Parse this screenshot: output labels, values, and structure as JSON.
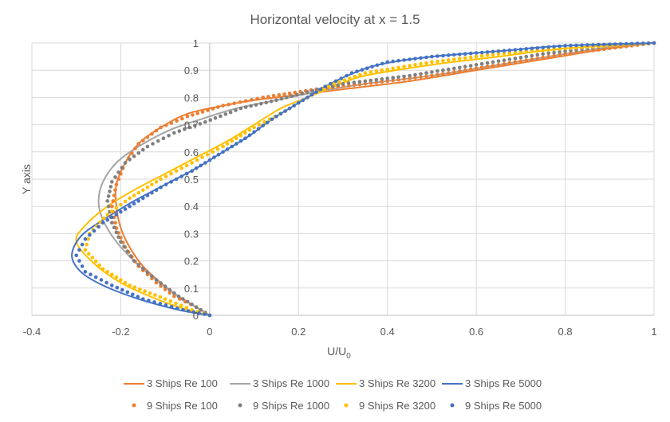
{
  "chart_data": {
    "type": "scatter",
    "title": "Horizontal velocity at x = 1.5",
    "xlabel": "U/U",
    "xlabel_subscript": "0",
    "ylabel": "Y axis",
    "xlim": [
      -0.4,
      1
    ],
    "ylim": [
      0,
      1
    ],
    "xticks": [
      "-0.4",
      "-0.2",
      "0",
      "0.2",
      "0.4",
      "0.6",
      "0.8",
      "1"
    ],
    "yticks": [
      "0",
      "0.1",
      "0.2",
      "0.3",
      "0.4",
      "0.5",
      "0.6",
      "0.7",
      "0.8",
      "0.9",
      "1"
    ],
    "grid": true,
    "legend_position": "bottom",
    "series": [
      {
        "name": "3 Ships Re 100",
        "style": "line",
        "color": "#ED7D31",
        "points": [
          [
            0,
            0
          ],
          [
            -0.03,
            0.03
          ],
          [
            -0.07,
            0.07
          ],
          [
            -0.11,
            0.12
          ],
          [
            -0.15,
            0.18
          ],
          [
            -0.18,
            0.25
          ],
          [
            -0.2,
            0.32
          ],
          [
            -0.21,
            0.4
          ],
          [
            -0.21,
            0.48
          ],
          [
            -0.19,
            0.56
          ],
          [
            -0.16,
            0.63
          ],
          [
            -0.11,
            0.69
          ],
          [
            -0.05,
            0.74
          ],
          [
            0.03,
            0.77
          ],
          [
            0.1,
            0.79
          ],
          [
            0.2,
            0.81
          ],
          [
            0.3,
            0.83
          ],
          [
            0.45,
            0.86
          ],
          [
            0.6,
            0.9
          ],
          [
            0.75,
            0.94
          ],
          [
            0.9,
            0.98
          ],
          [
            1,
            1
          ]
        ]
      },
      {
        "name": "3 Ships Re 1000",
        "style": "line",
        "color": "#A5A5A5",
        "points": [
          [
            0,
            0
          ],
          [
            -0.03,
            0.03
          ],
          [
            -0.07,
            0.07
          ],
          [
            -0.12,
            0.13
          ],
          [
            -0.17,
            0.2
          ],
          [
            -0.21,
            0.27
          ],
          [
            -0.24,
            0.35
          ],
          [
            -0.25,
            0.42
          ],
          [
            -0.24,
            0.49
          ],
          [
            -0.21,
            0.56
          ],
          [
            -0.16,
            0.62
          ],
          [
            -0.09,
            0.68
          ],
          [
            -0.02,
            0.72
          ],
          [
            0.06,
            0.76
          ],
          [
            0.15,
            0.79
          ],
          [
            0.24,
            0.82
          ],
          [
            0.35,
            0.85
          ],
          [
            0.5,
            0.88
          ],
          [
            0.65,
            0.92
          ],
          [
            0.8,
            0.96
          ],
          [
            0.92,
            0.99
          ],
          [
            1,
            1
          ]
        ]
      },
      {
        "name": "3 Ships Re 3200",
        "style": "line",
        "color": "#FFC000",
        "points": [
          [
            0,
            0
          ],
          [
            -0.05,
            0.02
          ],
          [
            -0.12,
            0.06
          ],
          [
            -0.2,
            0.12
          ],
          [
            -0.26,
            0.19
          ],
          [
            -0.3,
            0.27
          ],
          [
            -0.28,
            0.33
          ],
          [
            -0.23,
            0.4
          ],
          [
            -0.17,
            0.46
          ],
          [
            -0.1,
            0.52
          ],
          [
            -0.03,
            0.58
          ],
          [
            0.04,
            0.64
          ],
          [
            0.1,
            0.7
          ],
          [
            0.16,
            0.76
          ],
          [
            0.22,
            0.8
          ],
          [
            0.28,
            0.84
          ],
          [
            0.35,
            0.88
          ],
          [
            0.5,
            0.92
          ],
          [
            0.65,
            0.95
          ],
          [
            0.8,
            0.98
          ],
          [
            1,
            1
          ]
        ]
      },
      {
        "name": "3 Ships Re 5000",
        "style": "line",
        "color": "#4472C4",
        "points": [
          [
            0,
            0
          ],
          [
            -0.07,
            0.02
          ],
          [
            -0.16,
            0.06
          ],
          [
            -0.24,
            0.11
          ],
          [
            -0.29,
            0.16
          ],
          [
            -0.31,
            0.22
          ],
          [
            -0.29,
            0.29
          ],
          [
            -0.24,
            0.35
          ],
          [
            -0.17,
            0.42
          ],
          [
            -0.1,
            0.48
          ],
          [
            -0.03,
            0.54
          ],
          [
            0.03,
            0.6
          ],
          [
            0.09,
            0.66
          ],
          [
            0.14,
            0.72
          ],
          [
            0.2,
            0.78
          ],
          [
            0.26,
            0.84
          ],
          [
            0.31,
            0.88
          ],
          [
            0.38,
            0.92
          ],
          [
            0.5,
            0.95
          ],
          [
            0.65,
            0.97
          ],
          [
            0.8,
            0.99
          ],
          [
            1,
            1
          ]
        ]
      },
      {
        "name": "9 Ships Re 100",
        "style": "dots",
        "color": "#ED7D31",
        "points": [
          [
            0,
            0
          ],
          [
            -0.03,
            0.03
          ],
          [
            -0.08,
            0.07
          ],
          [
            -0.12,
            0.12
          ],
          [
            -0.16,
            0.18
          ],
          [
            -0.19,
            0.25
          ],
          [
            -0.21,
            0.32
          ],
          [
            -0.22,
            0.4
          ],
          [
            -0.21,
            0.48
          ],
          [
            -0.19,
            0.56
          ],
          [
            -0.16,
            0.63
          ],
          [
            -0.11,
            0.69
          ],
          [
            -0.05,
            0.73
          ],
          [
            0.03,
            0.77
          ],
          [
            0.12,
            0.8
          ],
          [
            0.24,
            0.83
          ],
          [
            0.35,
            0.85
          ],
          [
            0.5,
            0.88
          ],
          [
            0.65,
            0.92
          ],
          [
            0.8,
            0.96
          ],
          [
            0.9,
            0.98
          ],
          [
            1,
            1
          ]
        ]
      },
      {
        "name": "9 Ships Re 1000",
        "style": "dots",
        "color": "#7F7F7F",
        "points": [
          [
            0,
            0
          ],
          [
            -0.03,
            0.03
          ],
          [
            -0.07,
            0.07
          ],
          [
            -0.12,
            0.13
          ],
          [
            -0.17,
            0.2
          ],
          [
            -0.2,
            0.27
          ],
          [
            -0.22,
            0.34
          ],
          [
            -0.23,
            0.42
          ],
          [
            -0.22,
            0.49
          ],
          [
            -0.19,
            0.56
          ],
          [
            -0.14,
            0.62
          ],
          [
            -0.08,
            0.67
          ],
          [
            -0.01,
            0.71
          ],
          [
            0.07,
            0.76
          ],
          [
            0.15,
            0.79
          ],
          [
            0.22,
            0.82
          ],
          [
            0.3,
            0.85
          ],
          [
            0.45,
            0.88
          ],
          [
            0.6,
            0.92
          ],
          [
            0.75,
            0.96
          ],
          [
            0.9,
            0.99
          ],
          [
            1,
            1
          ]
        ]
      },
      {
        "name": "9 Ships Re 3200",
        "style": "dots",
        "color": "#FFC000",
        "points": [
          [
            0,
            0
          ],
          [
            -0.04,
            0.02
          ],
          [
            -0.1,
            0.06
          ],
          [
            -0.18,
            0.11
          ],
          [
            -0.24,
            0.17
          ],
          [
            -0.28,
            0.24
          ],
          [
            -0.27,
            0.3
          ],
          [
            -0.23,
            0.37
          ],
          [
            -0.18,
            0.43
          ],
          [
            -0.11,
            0.5
          ],
          [
            -0.04,
            0.56
          ],
          [
            0.03,
            0.62
          ],
          [
            0.1,
            0.69
          ],
          [
            0.17,
            0.75
          ],
          [
            0.23,
            0.81
          ],
          [
            0.28,
            0.85
          ],
          [
            0.35,
            0.89
          ],
          [
            0.5,
            0.93
          ],
          [
            0.65,
            0.96
          ],
          [
            0.8,
            0.98
          ],
          [
            1,
            1
          ]
        ]
      },
      {
        "name": "9 Ships Re 5000",
        "style": "dots",
        "color": "#4472C4",
        "points": [
          [
            0,
            0
          ],
          [
            -0.06,
            0.02
          ],
          [
            -0.15,
            0.06
          ],
          [
            -0.22,
            0.11
          ],
          [
            -0.28,
            0.16
          ],
          [
            -0.3,
            0.22
          ],
          [
            -0.28,
            0.28
          ],
          [
            -0.24,
            0.34
          ],
          [
            -0.18,
            0.4
          ],
          [
            -0.11,
            0.47
          ],
          [
            -0.04,
            0.53
          ],
          [
            0.02,
            0.59
          ],
          [
            0.08,
            0.65
          ],
          [
            0.14,
            0.72
          ],
          [
            0.2,
            0.78
          ],
          [
            0.26,
            0.84
          ],
          [
            0.32,
            0.89
          ],
          [
            0.4,
            0.93
          ],
          [
            0.5,
            0.95
          ],
          [
            0.65,
            0.97
          ],
          [
            0.8,
            0.99
          ],
          [
            1,
            1
          ]
        ]
      }
    ]
  }
}
